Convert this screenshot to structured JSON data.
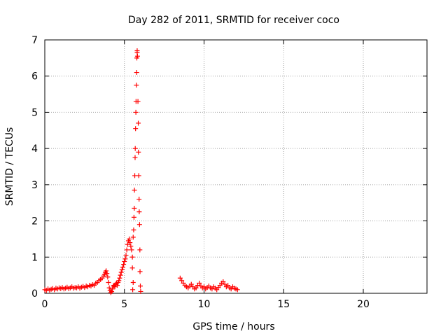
{
  "chart_data": {
    "type": "scatter",
    "title": "Day 282 of 2011, SRMTID for receiver coco",
    "xlabel": "GPS time / hours",
    "ylabel": "SRMTID / TECUs",
    "xlim": [
      0,
      24
    ],
    "ylim": [
      0,
      7
    ],
    "xticks": [
      0,
      5,
      10,
      15,
      20
    ],
    "xtick_labels": [
      "0",
      "5",
      "10",
      "15",
      "20"
    ],
    "yticks": [
      0,
      1,
      2,
      3,
      4,
      5,
      6,
      7
    ],
    "ytick_labels": [
      "0",
      "1",
      "2",
      "3",
      "4",
      "5",
      "6",
      "7"
    ],
    "grid": true,
    "marker": "+",
    "colors": {
      "series": "#ff0000",
      "grid": "#a0a0a0",
      "axis": "#000000"
    },
    "series": [
      {
        "name": "SRMTID",
        "points": [
          [
            0.0,
            0.1
          ],
          [
            0.1,
            0.08
          ],
          [
            0.2,
            0.12
          ],
          [
            0.3,
            0.09
          ],
          [
            0.4,
            0.11
          ],
          [
            0.5,
            0.13
          ],
          [
            0.6,
            0.1
          ],
          [
            0.7,
            0.14
          ],
          [
            0.8,
            0.12
          ],
          [
            0.9,
            0.15
          ],
          [
            1.0,
            0.13
          ],
          [
            1.1,
            0.16
          ],
          [
            1.2,
            0.12
          ],
          [
            1.3,
            0.14
          ],
          [
            1.4,
            0.17
          ],
          [
            1.5,
            0.13
          ],
          [
            1.6,
            0.15
          ],
          [
            1.7,
            0.18
          ],
          [
            1.8,
            0.14
          ],
          [
            1.9,
            0.16
          ],
          [
            2.0,
            0.15
          ],
          [
            2.1,
            0.18
          ],
          [
            2.2,
            0.14
          ],
          [
            2.3,
            0.17
          ],
          [
            2.4,
            0.19
          ],
          [
            2.5,
            0.16
          ],
          [
            2.6,
            0.2
          ],
          [
            2.7,
            0.18
          ],
          [
            2.8,
            0.22
          ],
          [
            2.9,
            0.2
          ],
          [
            3.0,
            0.24
          ],
          [
            3.1,
            0.22
          ],
          [
            3.2,
            0.28
          ],
          [
            3.3,
            0.3
          ],
          [
            3.4,
            0.35
          ],
          [
            3.5,
            0.38
          ],
          [
            3.6,
            0.42
          ],
          [
            3.7,
            0.48
          ],
          [
            3.75,
            0.52
          ],
          [
            3.8,
            0.58
          ],
          [
            3.85,
            0.62
          ],
          [
            3.9,
            0.55
          ],
          [
            3.95,
            0.45
          ],
          [
            4.0,
            0.3
          ],
          [
            4.05,
            0.15
          ],
          [
            4.1,
            0.08
          ],
          [
            4.15,
            0.02
          ],
          [
            4.2,
            0.05
          ],
          [
            4.25,
            0.12
          ],
          [
            4.3,
            0.2
          ],
          [
            4.35,
            0.22
          ],
          [
            4.4,
            0.18
          ],
          [
            4.45,
            0.25
          ],
          [
            4.5,
            0.28
          ],
          [
            4.55,
            0.22
          ],
          [
            4.6,
            0.3
          ],
          [
            4.65,
            0.35
          ],
          [
            4.7,
            0.42
          ],
          [
            4.75,
            0.5
          ],
          [
            4.8,
            0.58
          ],
          [
            4.85,
            0.65
          ],
          [
            4.9,
            0.72
          ],
          [
            4.95,
            0.8
          ],
          [
            5.0,
            0.88
          ],
          [
            5.05,
            0.95
          ],
          [
            5.1,
            1.05
          ],
          [
            5.15,
            1.2
          ],
          [
            5.2,
            1.35
          ],
          [
            5.25,
            1.45
          ],
          [
            5.3,
            1.5
          ],
          [
            5.35,
            1.4
          ],
          [
            5.4,
            1.3
          ],
          [
            5.45,
            1.2
          ],
          [
            5.5,
            1.0
          ],
          [
            5.5,
            0.7
          ],
          [
            5.52,
            0.1
          ],
          [
            5.55,
            0.3
          ],
          [
            5.55,
            1.55
          ],
          [
            5.58,
            1.75
          ],
          [
            5.6,
            2.1
          ],
          [
            5.62,
            2.35
          ],
          [
            5.63,
            2.85
          ],
          [
            5.65,
            3.25
          ],
          [
            5.67,
            3.75
          ],
          [
            5.68,
            4.0
          ],
          [
            5.7,
            4.55
          ],
          [
            5.72,
            5.0
          ],
          [
            5.73,
            5.3
          ],
          [
            5.75,
            5.75
          ],
          [
            5.77,
            6.1
          ],
          [
            5.78,
            6.5
          ],
          [
            5.8,
            6.65
          ],
          [
            5.8,
            6.7
          ],
          [
            5.82,
            6.55
          ],
          [
            5.85,
            5.3
          ],
          [
            5.87,
            4.7
          ],
          [
            5.88,
            3.9
          ],
          [
            5.9,
            3.25
          ],
          [
            5.92,
            2.6
          ],
          [
            5.93,
            2.25
          ],
          [
            5.95,
            1.9
          ],
          [
            5.97,
            1.2
          ],
          [
            5.98,
            0.6
          ],
          [
            6.0,
            0.2
          ],
          [
            6.02,
            0.05
          ],
          [
            8.5,
            0.42
          ],
          [
            8.6,
            0.35
          ],
          [
            8.7,
            0.28
          ],
          [
            8.8,
            0.22
          ],
          [
            8.9,
            0.18
          ],
          [
            9.0,
            0.15
          ],
          [
            9.1,
            0.2
          ],
          [
            9.2,
            0.25
          ],
          [
            9.3,
            0.18
          ],
          [
            9.4,
            0.12
          ],
          [
            9.5,
            0.15
          ],
          [
            9.6,
            0.22
          ],
          [
            9.7,
            0.28
          ],
          [
            9.8,
            0.2
          ],
          [
            9.9,
            0.15
          ],
          [
            10.0,
            0.18
          ],
          [
            10.1,
            0.12
          ],
          [
            10.2,
            0.16
          ],
          [
            10.3,
            0.2
          ],
          [
            10.4,
            0.15
          ],
          [
            10.5,
            0.12
          ],
          [
            10.6,
            0.18
          ],
          [
            10.7,
            0.14
          ],
          [
            10.8,
            0.1
          ],
          [
            10.9,
            0.16
          ],
          [
            11.0,
            0.22
          ],
          [
            11.1,
            0.28
          ],
          [
            11.2,
            0.32
          ],
          [
            11.3,
            0.25
          ],
          [
            11.4,
            0.18
          ],
          [
            11.5,
            0.22
          ],
          [
            11.6,
            0.15
          ],
          [
            11.7,
            0.12
          ],
          [
            11.8,
            0.18
          ],
          [
            11.9,
            0.14
          ],
          [
            12.0,
            0.12
          ],
          [
            12.1,
            0.1
          ]
        ]
      }
    ]
  }
}
